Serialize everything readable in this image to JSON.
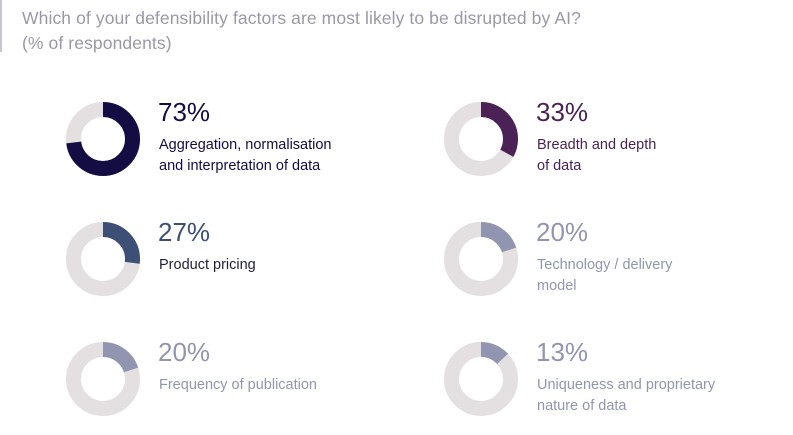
{
  "title": {
    "line1": "Which of your defensibility factors are most likely to be disrupted by AI?",
    "line2": "(% of respondents)"
  },
  "colors": {
    "track": "#e4dfe1",
    "title_text": "#9a98a6"
  },
  "chart_data": {
    "type": "pie",
    "variant": "donut",
    "unit": "%",
    "series": [
      {
        "value": 73,
        "display": "73%",
        "label": "Aggregation, normalisation and interpretation of data",
        "label_lines": [
          "Aggregation, normalisation",
          "and interpretation of data"
        ],
        "fill_color": "#130d44",
        "text_color": "#130d44",
        "label_color": "#130d44"
      },
      {
        "value": 33,
        "display": "33%",
        "label": "Breadth and depth of data",
        "label_lines": [
          "Breadth and depth",
          "of data"
        ],
        "fill_color": "#4a2255",
        "text_color": "#4a2255",
        "label_color": "#4a2255"
      },
      {
        "value": 27,
        "display": "27%",
        "label": "Product pricing",
        "label_lines": [
          "Product pricing"
        ],
        "fill_color": "#3e4f75",
        "text_color": "#3e4f75",
        "label_color": "#1f1f3a"
      },
      {
        "value": 20,
        "display": "20%",
        "label": "Technology / delivery model",
        "label_lines": [
          "Technology / delivery",
          "model"
        ],
        "fill_color": "#9295b0",
        "text_color": "#9295b0",
        "label_color": "#9295b0"
      },
      {
        "value": 20,
        "display": "20%",
        "label": "Frequency of publication",
        "label_lines": [
          "Frequency of publication"
        ],
        "fill_color": "#9295b0",
        "text_color": "#9295b0",
        "label_color": "#9295b0"
      },
      {
        "value": 13,
        "display": "13%",
        "label": "Uniqueness and proprietary nature of data",
        "label_lines": [
          "Uniqueness and proprietary",
          "nature of data"
        ],
        "fill_color": "#9295b0",
        "text_color": "#9295b0",
        "label_color": "#9295b0"
      }
    ]
  }
}
